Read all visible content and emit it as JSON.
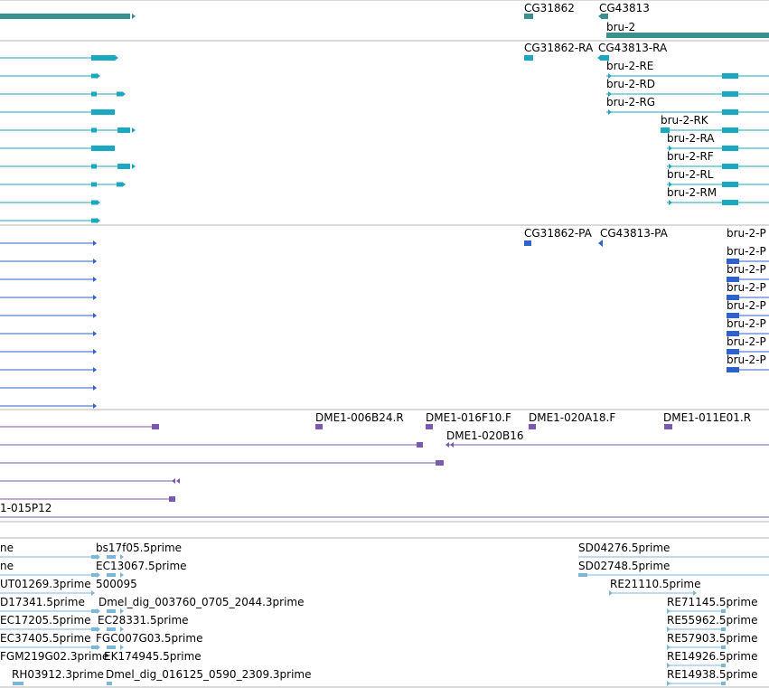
{
  "colors": {
    "gene": "#3a8f8f",
    "transcript": "#1aa7c0",
    "protein": "#2f62c8",
    "probe": "#7a58b4",
    "est": "#7ab7d8",
    "separator": "#b4b4b4"
  },
  "tracks": {
    "gene": {
      "labels": [
        "CG31862",
        "CG43813",
        "bru-2"
      ]
    },
    "transcript": {
      "labels": [
        "CG31862-RA",
        "CG43813-RA",
        "bru-2-RE",
        "bru-2-RD",
        "bru-2-RG",
        "bru-2-RK",
        "bru-2-RA",
        "bru-2-RF",
        "bru-2-RL",
        "bru-2-RM"
      ]
    },
    "protein": {
      "labels": [
        "CG31862-PA",
        "CG43813-PA",
        "bru-2-P",
        "bru-2-P",
        "bru-2-P",
        "bru-2-P",
        "bru-2-P",
        "bru-2-P",
        "bru-2-P",
        "bru-2-P"
      ]
    },
    "probe": {
      "labels": [
        "DME1-006B24.R",
        "DME1-016F10.F",
        "DME1-020A18.F",
        "DME1-011E01.R",
        "DME1-020B16",
        "1-015P12"
      ]
    },
    "est": {
      "labels": [
        "ne",
        "bs17f05.5prime",
        "ne",
        "EC13067.5prime",
        "UT01269.3prime",
        "500095",
        "D17341.5prime",
        "Dmel_dig_003760_0705_2044.3prime",
        "EC17205.5prime",
        "EC28331.5prime",
        "EC37405.5prime",
        "FGC007G03.5prime",
        "FGM219G02.3prime",
        "EK174945.5prime",
        "RH03912.3prime",
        "Dmel_dig_016125_0590_2309.3prime",
        "SD04276.5prime",
        "SD02748.5prime",
        "RE21110.5prime",
        "RE71145.5prime",
        "RE55962.5prime",
        "RE57903.5prime",
        "RE14926.5prime",
        "RE14938.5prime"
      ]
    }
  }
}
